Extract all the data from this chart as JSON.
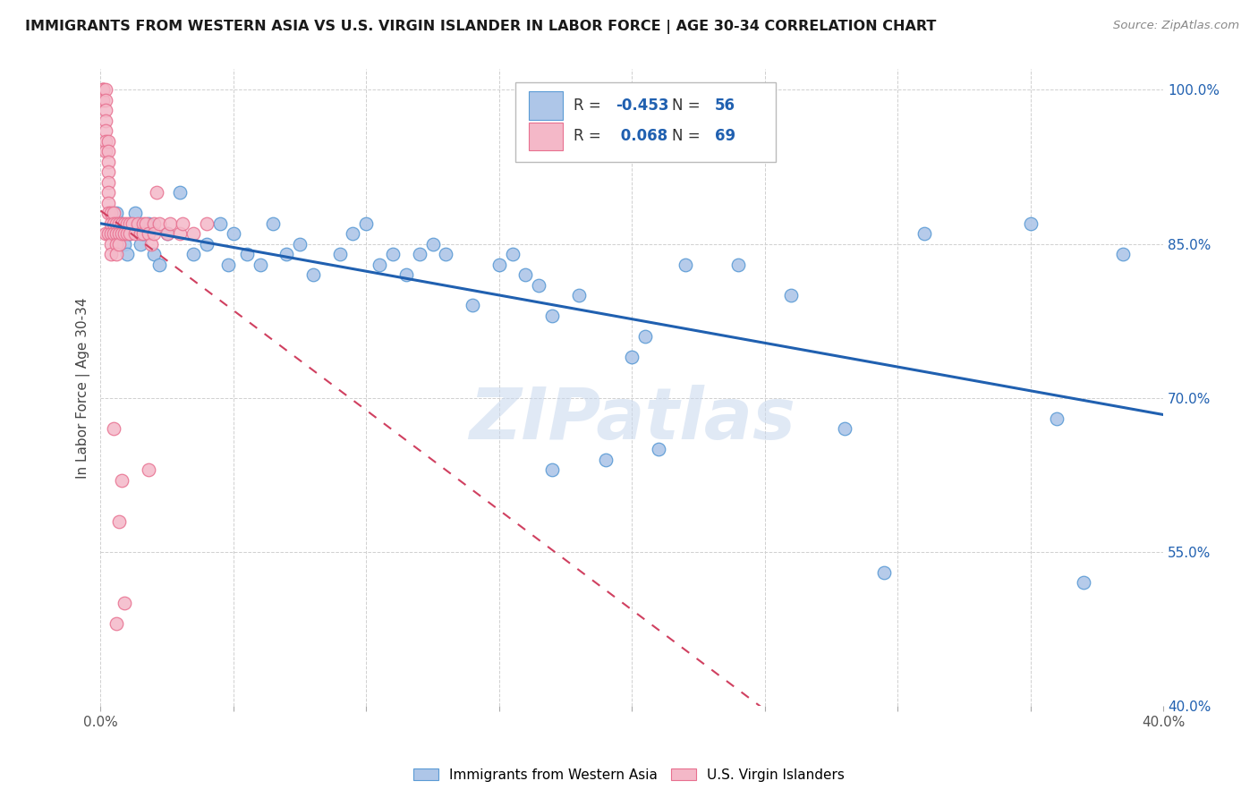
{
  "title": "IMMIGRANTS FROM WESTERN ASIA VS U.S. VIRGIN ISLANDER IN LABOR FORCE | AGE 30-34 CORRELATION CHART",
  "source": "Source: ZipAtlas.com",
  "ylabel": "In Labor Force | Age 30-34",
  "xlim": [
    0.0,
    0.4
  ],
  "ylim": [
    0.4,
    1.02
  ],
  "xticks": [
    0.0,
    0.05,
    0.1,
    0.15,
    0.2,
    0.25,
    0.3,
    0.35,
    0.4
  ],
  "yticks": [
    0.4,
    0.55,
    0.7,
    0.85,
    1.0
  ],
  "ytick_labels": [
    "40.0%",
    "55.0%",
    "70.0%",
    "85.0%",
    "100.0%"
  ],
  "blue_R": -0.453,
  "blue_N": 56,
  "pink_R": 0.068,
  "pink_N": 69,
  "blue_color": "#aec6e8",
  "pink_color": "#f4b8c8",
  "blue_edge_color": "#5b9bd5",
  "pink_edge_color": "#e87090",
  "blue_line_color": "#2060b0",
  "pink_line_color": "#d04060",
  "legend_label_blue": "Immigrants from Western Asia",
  "legend_label_pink": "U.S. Virgin Islanders",
  "watermark": "ZIPatlas",
  "blue_x": [
    0.006,
    0.007,
    0.008,
    0.009,
    0.01,
    0.011,
    0.013,
    0.015,
    0.016,
    0.018,
    0.02,
    0.022,
    0.025,
    0.03,
    0.035,
    0.04,
    0.045,
    0.048,
    0.05,
    0.055,
    0.06,
    0.065,
    0.07,
    0.075,
    0.08,
    0.09,
    0.095,
    0.1,
    0.105,
    0.11,
    0.115,
    0.12,
    0.125,
    0.13,
    0.14,
    0.15,
    0.155,
    0.16,
    0.165,
    0.17,
    0.18,
    0.19,
    0.2,
    0.205,
    0.21,
    0.22,
    0.24,
    0.26,
    0.28,
    0.31,
    0.35,
    0.36,
    0.37,
    0.385,
    0.295,
    0.17
  ],
  "blue_y": [
    0.88,
    0.86,
    0.87,
    0.85,
    0.84,
    0.86,
    0.88,
    0.85,
    0.86,
    0.87,
    0.84,
    0.83,
    0.86,
    0.9,
    0.84,
    0.85,
    0.87,
    0.83,
    0.86,
    0.84,
    0.83,
    0.87,
    0.84,
    0.85,
    0.82,
    0.84,
    0.86,
    0.87,
    0.83,
    0.84,
    0.82,
    0.84,
    0.85,
    0.84,
    0.79,
    0.83,
    0.84,
    0.82,
    0.81,
    0.78,
    0.8,
    0.64,
    0.74,
    0.76,
    0.65,
    0.83,
    0.83,
    0.8,
    0.67,
    0.86,
    0.87,
    0.68,
    0.52,
    0.84,
    0.53,
    0.63
  ],
  "pink_x": [
    0.001,
    0.001,
    0.001,
    0.001,
    0.002,
    0.002,
    0.002,
    0.002,
    0.002,
    0.002,
    0.002,
    0.002,
    0.003,
    0.003,
    0.003,
    0.003,
    0.003,
    0.003,
    0.003,
    0.003,
    0.003,
    0.004,
    0.004,
    0.004,
    0.004,
    0.004,
    0.005,
    0.005,
    0.005,
    0.006,
    0.006,
    0.006,
    0.006,
    0.007,
    0.007,
    0.007,
    0.008,
    0.008,
    0.009,
    0.009,
    0.01,
    0.01,
    0.011,
    0.011,
    0.012,
    0.013,
    0.014,
    0.015,
    0.016,
    0.016,
    0.017,
    0.018,
    0.019,
    0.02,
    0.02,
    0.021,
    0.022,
    0.025,
    0.026,
    0.03,
    0.031,
    0.035,
    0.04,
    0.007,
    0.008,
    0.009,
    0.018,
    0.005,
    0.006
  ],
  "pink_y": [
    1.0,
    1.0,
    1.0,
    0.99,
    1.0,
    0.99,
    0.98,
    0.97,
    0.96,
    0.95,
    0.94,
    0.86,
    0.95,
    0.94,
    0.93,
    0.92,
    0.91,
    0.9,
    0.89,
    0.88,
    0.86,
    0.88,
    0.87,
    0.86,
    0.85,
    0.84,
    0.88,
    0.87,
    0.86,
    0.87,
    0.86,
    0.85,
    0.84,
    0.87,
    0.86,
    0.85,
    0.87,
    0.86,
    0.87,
    0.86,
    0.87,
    0.86,
    0.87,
    0.86,
    0.87,
    0.86,
    0.87,
    0.86,
    0.87,
    0.86,
    0.87,
    0.86,
    0.85,
    0.87,
    0.86,
    0.9,
    0.87,
    0.86,
    0.87,
    0.86,
    0.87,
    0.86,
    0.87,
    0.58,
    0.62,
    0.5,
    0.63,
    0.67,
    0.48
  ]
}
